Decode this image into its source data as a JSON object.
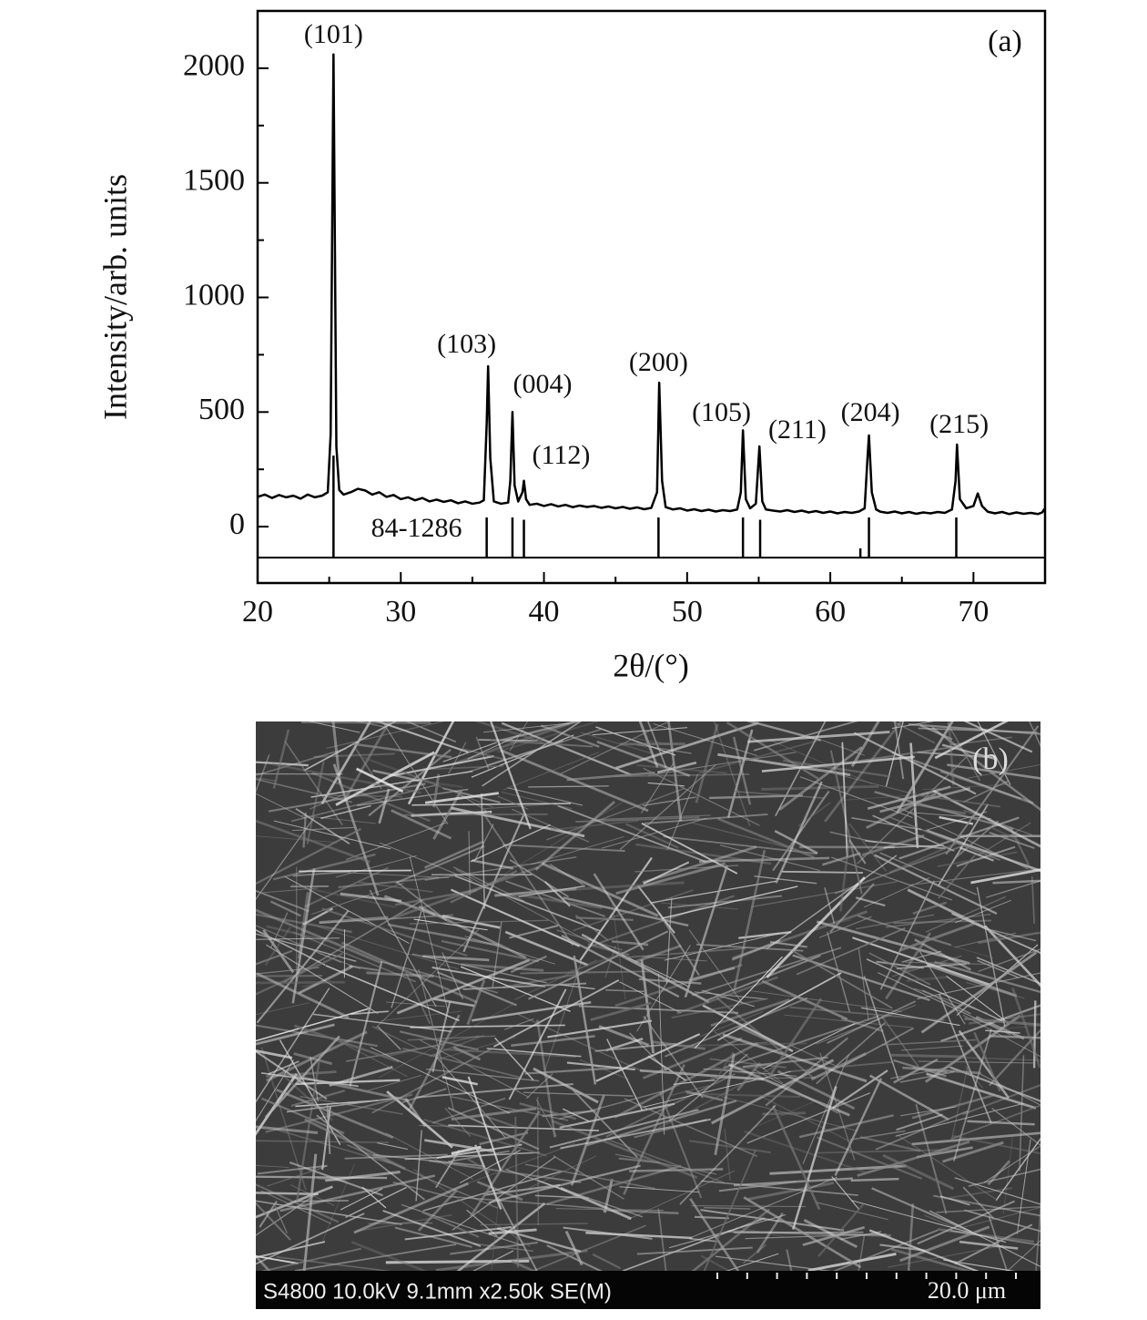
{
  "chart_data": {
    "type": "line",
    "x_label": "2θ/(°)",
    "y_label": "Intensity/arb. units",
    "panel_label": "(a)",
    "xlim": [
      20,
      75
    ],
    "xticks": [
      20,
      30,
      40,
      50,
      60,
      70
    ],
    "xminor_ticks": [
      25,
      35,
      45,
      55,
      65,
      75
    ],
    "ylim": [
      -246,
      2250
    ],
    "yticks": [
      0,
      500,
      1000,
      1500,
      2000
    ],
    "yminor_ticks": [
      250,
      750,
      1250,
      1750
    ],
    "color": "#000000",
    "x": [
      20,
      20.5,
      21,
      21.5,
      22,
      22.5,
      23,
      23.5,
      24,
      24.5,
      24.9,
      25.1,
      25.3,
      25.5,
      25.7,
      26,
      26.5,
      27,
      27.5,
      28,
      28.5,
      29,
      29.5,
      30,
      30.5,
      31,
      31.5,
      32,
      32.5,
      33,
      33.5,
      34,
      34.5,
      35,
      35.5,
      35.8,
      36,
      36.1,
      36.25,
      36.5,
      37,
      37.5,
      37.65,
      37.8,
      37.95,
      38.2,
      38.5,
      38.6,
      38.75,
      39,
      39.5,
      40,
      40.5,
      41,
      41.5,
      42,
      42.5,
      43,
      43.5,
      44,
      44.5,
      45,
      45.5,
      46,
      46.5,
      47,
      47.5,
      47.9,
      48.05,
      48.25,
      48.5,
      49,
      49.5,
      50,
      50.5,
      51,
      51.5,
      52,
      52.5,
      53,
      53.5,
      53.75,
      53.9,
      54.1,
      54.4,
      54.8,
      55.05,
      55.25,
      55.5,
      56,
      56.5,
      57,
      57.5,
      58,
      58.5,
      59,
      59.5,
      60,
      60.5,
      61,
      61.5,
      62,
      62.4,
      62.6,
      62.7,
      62.9,
      63.2,
      63.5,
      64,
      64.5,
      65,
      65.5,
      66,
      66.5,
      67,
      67.5,
      68,
      68.5,
      68.75,
      68.85,
      69.05,
      69.5,
      70,
      70.3,
      70.6,
      71,
      71.5,
      72,
      72.5,
      73,
      73.5,
      74,
      74.5,
      74.8,
      75
    ],
    "values": [
      130,
      140,
      125,
      138,
      128,
      135,
      122,
      140,
      128,
      135,
      150,
      400,
      2060,
      350,
      160,
      140,
      150,
      165,
      158,
      140,
      150,
      130,
      138,
      120,
      128,
      115,
      125,
      110,
      118,
      108,
      115,
      102,
      110,
      100,
      105,
      115,
      450,
      700,
      300,
      110,
      100,
      105,
      200,
      500,
      180,
      110,
      150,
      200,
      120,
      95,
      100,
      90,
      98,
      88,
      95,
      85,
      92,
      86,
      90,
      82,
      88,
      80,
      86,
      78,
      84,
      76,
      82,
      150,
      628,
      200,
      85,
      75,
      80,
      70,
      76,
      68,
      74,
      66,
      72,
      68,
      75,
      150,
      420,
      120,
      80,
      100,
      350,
      110,
      75,
      70,
      66,
      72,
      64,
      70,
      62,
      68,
      60,
      66,
      58,
      64,
      60,
      66,
      80,
      300,
      398,
      150,
      75,
      65,
      60,
      66,
      58,
      64,
      56,
      62,
      58,
      64,
      60,
      75,
      200,
      358,
      120,
      80,
      90,
      145,
      90,
      65,
      58,
      64,
      55,
      62,
      56,
      60,
      55,
      62,
      80
    ],
    "reference": {
      "label": "84-1286",
      "label_x": 31.1,
      "label_y": -16,
      "baseline": -135,
      "x": [
        25.3,
        36.0,
        37.8,
        38.6,
        48.0,
        53.9,
        55.1,
        62.1,
        62.7,
        68.8
      ],
      "top": [
        310,
        40,
        40,
        30,
        40,
        40,
        30,
        -95,
        40,
        40
      ]
    },
    "annotations": [
      {
        "text": "(101)",
        "x": 25.3,
        "y": 2139
      },
      {
        "text": "(103)",
        "x": 34.6,
        "y": 787
      },
      {
        "text": "(004)",
        "x": 39.9,
        "y": 612
      },
      {
        "text": "(112)",
        "x": 41.2,
        "y": 302
      },
      {
        "text": "(200)",
        "x": 48.0,
        "y": 708
      },
      {
        "text": "(105)",
        "x": 52.4,
        "y": 489
      },
      {
        "text": "(211)",
        "x": 57.7,
        "y": 414
      },
      {
        "text": "(204)",
        "x": 62.8,
        "y": 489
      },
      {
        "text": "(215)",
        "x": 69.0,
        "y": 437
      }
    ]
  },
  "sem": {
    "label": "(b)",
    "info": "S4800 10.0kV 9.1mm x2.50k SE(M)",
    "scale": "20.0 μm"
  }
}
